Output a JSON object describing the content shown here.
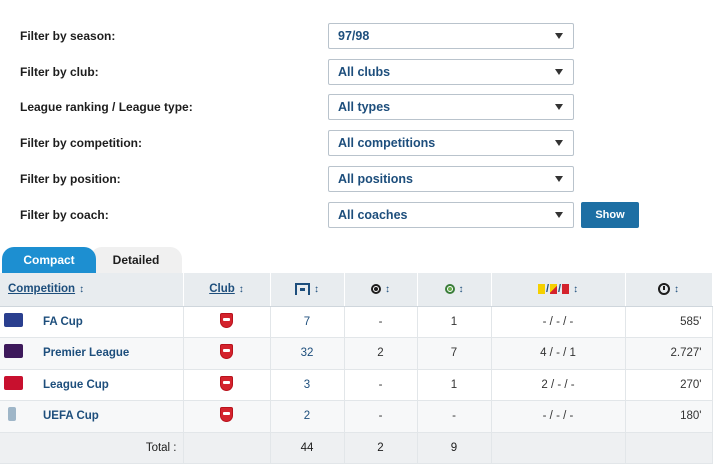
{
  "filters": [
    {
      "label": "Filter by season:",
      "value": "97/98"
    },
    {
      "label": "Filter by club:",
      "value": "All clubs"
    },
    {
      "label": "League ranking / League type:",
      "value": "All types"
    },
    {
      "label": "Filter by competition:",
      "value": "All competitions"
    },
    {
      "label": "Filter by position:",
      "value": "All positions"
    },
    {
      "label": "Filter by coach:",
      "value": "All coaches"
    }
  ],
  "show_button": "Show",
  "tabs": {
    "compact": "Compact",
    "detailed": "Detailed",
    "active": "Compact"
  },
  "table": {
    "headers": {
      "competition": "Competition",
      "club": "Club",
      "sort_glyph": "↕",
      "icons": [
        "appearances-icon",
        "goals-icon",
        "assists-icon",
        "cards-icon",
        "minutes-icon"
      ],
      "card_separator": "/"
    },
    "rows": [
      {
        "competition": "FA Cup",
        "logo_color": "#2a3f8f",
        "appearances": "7",
        "goals": "-",
        "assists": "1",
        "cards": "- / - / -",
        "minutes": "585'"
      },
      {
        "competition": "Premier League",
        "logo_color": "#3d195b",
        "appearances": "32",
        "goals": "2",
        "assists": "7",
        "cards": "4 / - / 1",
        "minutes": "2.727'"
      },
      {
        "competition": "League Cup",
        "logo_color": "#c8102e",
        "appearances": "3",
        "goals": "-",
        "assists": "1",
        "cards": "2 / - / -",
        "minutes": "270'"
      },
      {
        "competition": "UEFA Cup",
        "logo_color": "#9fb6c8",
        "appearances": "2",
        "goals": "-",
        "assists": "-",
        "cards": "- / - / -",
        "minutes": "180'"
      }
    ],
    "totals": {
      "label": "Total :",
      "appearances": "44",
      "goals": "2",
      "assists": "9"
    }
  }
}
